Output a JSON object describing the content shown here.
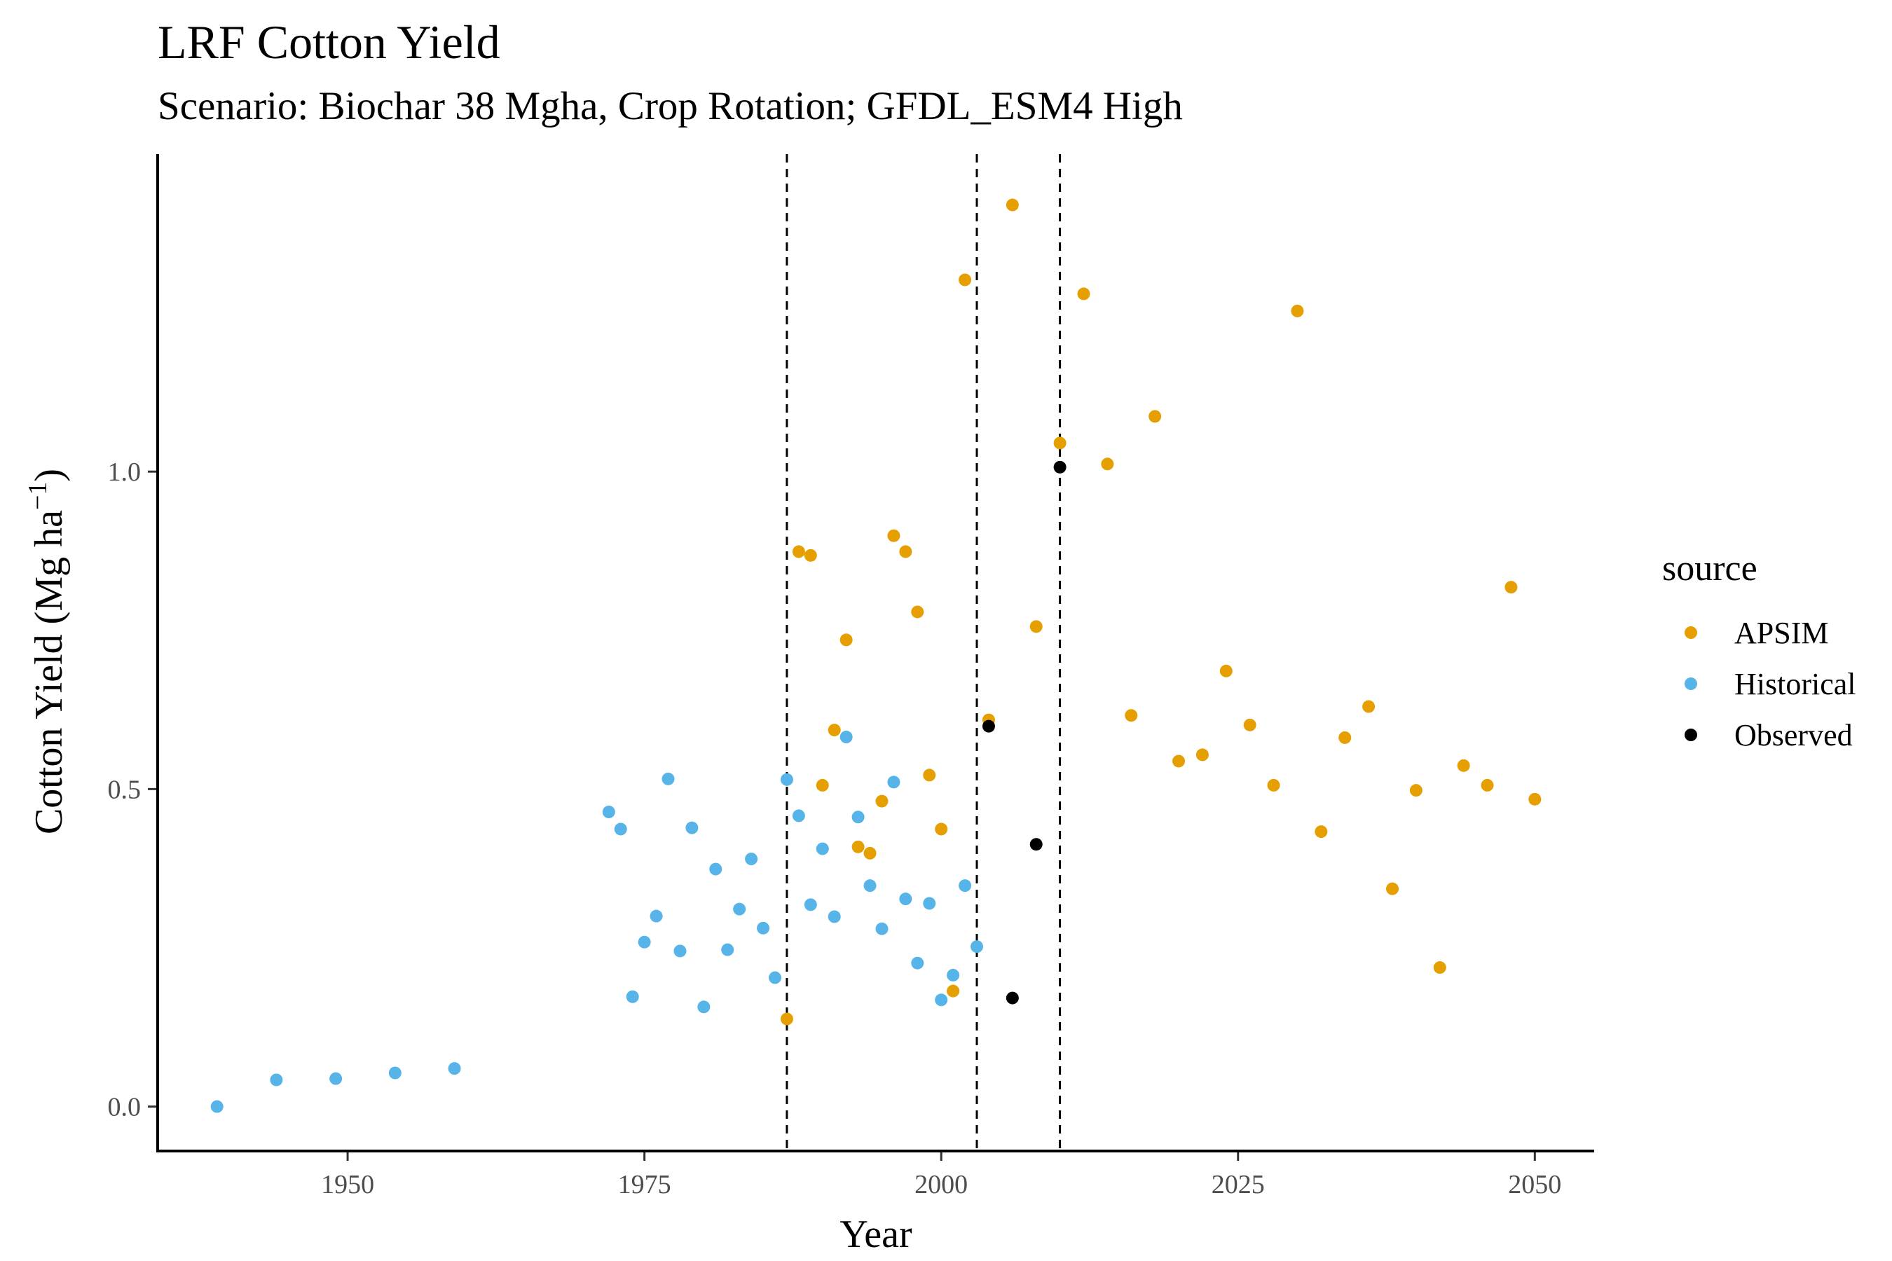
{
  "chart_data": {
    "type": "scatter",
    "title": "LRF Cotton Yield",
    "subtitle": "Scenario: Biochar 38 Mgha, Crop Rotation; GFDL_ESM4 High",
    "xlabel": "Year",
    "ylabel_main": "Cotton Yield (Mg ha",
    "ylabel_sup": "−1",
    "ylabel_close": ")",
    "xlim": [
      1934,
      2055
    ],
    "ylim": [
      -0.07,
      1.5
    ],
    "x_ticks": [
      1950,
      1975,
      2000,
      2025,
      2050
    ],
    "x_tick_labels": [
      "1950",
      "1975",
      "2000",
      "2025",
      "2050"
    ],
    "y_ticks": [
      0.0,
      0.5,
      1.0
    ],
    "y_tick_labels": [
      "0.0",
      "0.5",
      "1.0"
    ],
    "vlines": [
      1987,
      2003,
      2010
    ],
    "grid": false,
    "legend_title": "source",
    "legend_position": "right",
    "series": [
      {
        "name": "APSIM",
        "color": "#E69F00",
        "points": [
          [
            1987,
            0.138
          ],
          [
            1988,
            0.874
          ],
          [
            1989,
            0.868
          ],
          [
            1990,
            0.506
          ],
          [
            1991,
            0.593
          ],
          [
            1992,
            0.735
          ],
          [
            1993,
            0.409
          ],
          [
            1994,
            0.399
          ],
          [
            1995,
            0.481
          ],
          [
            1996,
            0.899
          ],
          [
            1997,
            0.874
          ],
          [
            1998,
            0.779
          ],
          [
            1999,
            0.522
          ],
          [
            2000,
            0.437
          ],
          [
            2001,
            0.182
          ],
          [
            2002,
            1.302
          ],
          [
            2004,
            0.609
          ],
          [
            2006,
            1.42
          ],
          [
            2008,
            0.756
          ],
          [
            2010,
            1.045
          ],
          [
            2012,
            1.28
          ],
          [
            2014,
            1.012
          ],
          [
            2016,
            0.616
          ],
          [
            2018,
            1.087
          ],
          [
            2020,
            0.544
          ],
          [
            2022,
            0.554
          ],
          [
            2024,
            0.686
          ],
          [
            2026,
            0.601
          ],
          [
            2028,
            0.506
          ],
          [
            2030,
            1.253
          ],
          [
            2032,
            0.433
          ],
          [
            2034,
            0.581
          ],
          [
            2036,
            0.63
          ],
          [
            2038,
            0.343
          ],
          [
            2040,
            0.498
          ],
          [
            2042,
            0.219
          ],
          [
            2044,
            0.537
          ],
          [
            2046,
            0.506
          ],
          [
            2048,
            0.818
          ],
          [
            2050,
            0.484
          ]
        ]
      },
      {
        "name": "Historical",
        "color": "#56B4E9",
        "points": [
          [
            1939,
            0.0
          ],
          [
            1944,
            0.042
          ],
          [
            1949,
            0.044
          ],
          [
            1954,
            0.053
          ],
          [
            1959,
            0.06
          ],
          [
            1972,
            0.464
          ],
          [
            1973,
            0.437
          ],
          [
            1974,
            0.173
          ],
          [
            1975,
            0.259
          ],
          [
            1976,
            0.3
          ],
          [
            1977,
            0.516
          ],
          [
            1978,
            0.245
          ],
          [
            1979,
            0.439
          ],
          [
            1980,
            0.157
          ],
          [
            1981,
            0.374
          ],
          [
            1982,
            0.247
          ],
          [
            1983,
            0.311
          ],
          [
            1984,
            0.39
          ],
          [
            1985,
            0.281
          ],
          [
            1986,
            0.203
          ],
          [
            1987,
            0.515
          ],
          [
            1988,
            0.458
          ],
          [
            1989,
            0.318
          ],
          [
            1990,
            0.406
          ],
          [
            1991,
            0.299
          ],
          [
            1992,
            0.582
          ],
          [
            1993,
            0.456
          ],
          [
            1994,
            0.348
          ],
          [
            1995,
            0.28
          ],
          [
            1996,
            0.511
          ],
          [
            1997,
            0.327
          ],
          [
            1998,
            0.226
          ],
          [
            1999,
            0.32
          ],
          [
            2000,
            0.168
          ],
          [
            2001,
            0.207
          ],
          [
            2002,
            0.348
          ],
          [
            2003,
            0.252
          ]
        ]
      },
      {
        "name": "Observed",
        "color": "#000000",
        "points": [
          [
            2004,
            0.599
          ],
          [
            2006,
            0.171
          ],
          [
            2008,
            0.413
          ],
          [
            2010,
            1.007
          ]
        ]
      }
    ]
  }
}
